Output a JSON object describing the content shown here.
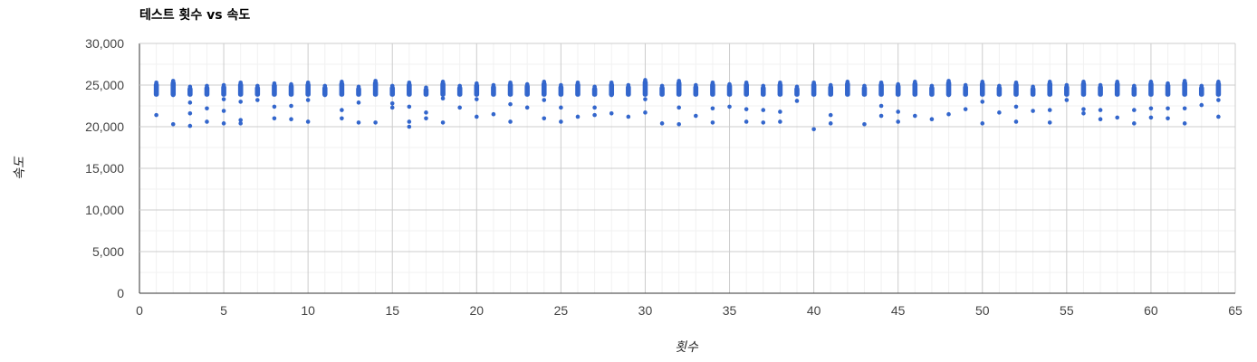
{
  "chart_data": {
    "type": "scatter",
    "title": "테스트 횟수 vs 속도",
    "xlabel": "횟수",
    "ylabel": "속도",
    "xlim": [
      0,
      65
    ],
    "ylim": [
      0,
      30000
    ],
    "x_ticks": [
      "0",
      "5",
      "10",
      "15",
      "20",
      "25",
      "30",
      "35",
      "40",
      "45",
      "50",
      "55",
      "60",
      "65"
    ],
    "y_ticks": [
      "0",
      "5,000",
      "10,000",
      "15,000",
      "20,000",
      "25,000",
      "30,000"
    ],
    "grid": true,
    "legend": "none",
    "point_color": "#3366cc",
    "series": [
      {
        "x": [
          1,
          1,
          1,
          2,
          2,
          2,
          2,
          3,
          3,
          3,
          3,
          3,
          4,
          4,
          4,
          5,
          5,
          5,
          5,
          6,
          6,
          6,
          6,
          7,
          7,
          8,
          8,
          8,
          9,
          9,
          9,
          10,
          10,
          10,
          11,
          11,
          12,
          12,
          12,
          13,
          13,
          13,
          14,
          14,
          14,
          15,
          15,
          15,
          16,
          16,
          16,
          16,
          17,
          17,
          17,
          18,
          18,
          18,
          19,
          19,
          20,
          20,
          20,
          21,
          21,
          22,
          22,
          22,
          23,
          23,
          24,
          24,
          24,
          25,
          25,
          25,
          26,
          26,
          27,
          27,
          27,
          28,
          28,
          28,
          29,
          29,
          30,
          30,
          30,
          31,
          31,
          32,
          32,
          32,
          33,
          33,
          34,
          34,
          34,
          35,
          35,
          36,
          36,
          36,
          37,
          37,
          37,
          38,
          38,
          38,
          39,
          39,
          40,
          40,
          41,
          41,
          41,
          42,
          42,
          43,
          43,
          44,
          44,
          44,
          45,
          45,
          45,
          46,
          46,
          47,
          47,
          48,
          48,
          48,
          49,
          49,
          50,
          50,
          50,
          51,
          51,
          52,
          52,
          52,
          53,
          53,
          54,
          54,
          54,
          55,
          55,
          56,
          56,
          56,
          57,
          57,
          57,
          58,
          58,
          59,
          59,
          59,
          60,
          60,
          60,
          61,
          61,
          61,
          62,
          62,
          62,
          63,
          63,
          64,
          64,
          64
        ],
        "y": [
          24800,
          25300,
          21400,
          25000,
          25500,
          23800,
          20300,
          24500,
          22900,
          21600,
          20100,
          24800,
          22200,
          20600,
          24900,
          23300,
          21900,
          20400,
          25000,
          25300,
          23000,
          20800,
          20400,
          24900,
          23200,
          25200,
          22400,
          21000,
          25100,
          22500,
          20900,
          25300,
          23200,
          20600,
          24900,
          23800,
          25400,
          22000,
          21000,
          24800,
          22900,
          20500,
          25500,
          24000,
          20500,
          24900,
          22800,
          22300,
          25300,
          22400,
          20600,
          20000,
          24700,
          21700,
          21000,
          25400,
          23400,
          20500,
          24900,
          22300,
          25200,
          23300,
          21200,
          25000,
          21500,
          25300,
          22700,
          20600,
          25100,
          22300,
          25400,
          23200,
          21000,
          25000,
          22300,
          20600,
          25300,
          21200,
          24800,
          22300,
          21400,
          25300,
          23800,
          21600,
          25000,
          21200,
          25600,
          23300,
          21700,
          24900,
          20400,
          25500,
          22300,
          20300,
          25000,
          21300,
          25300,
          22200,
          20500,
          25100,
          22400,
          25300,
          22100,
          20600,
          24900,
          22000,
          20500,
          25300,
          21800,
          20600,
          24800,
          23100,
          25300,
          19700,
          25000,
          21400,
          20400,
          25400,
          23900,
          24900,
          20300,
          25300,
          22500,
          21300,
          25100,
          21800,
          20600,
          25400,
          21300,
          24900,
          20900,
          25500,
          23800,
          21500,
          25000,
          22100,
          25400,
          23000,
          20400,
          24900,
          21700,
          25300,
          22400,
          20600,
          24800,
          21900,
          25400,
          22000,
          20500,
          25000,
          23200,
          25400,
          22100,
          21600,
          25000,
          22000,
          20900,
          25400,
          21100,
          24900,
          22000,
          20400,
          25400,
          22200,
          21100,
          25200,
          21000,
          22200,
          25500,
          22200,
          20400,
          24900,
          22600,
          25400,
          23200,
          21200
        ]
      }
    ]
  }
}
